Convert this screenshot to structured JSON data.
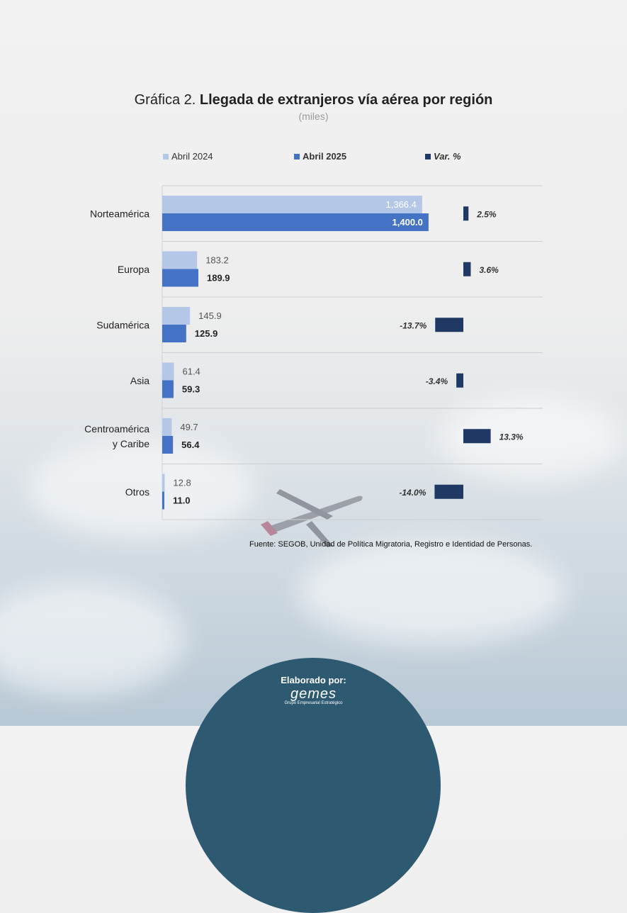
{
  "title_prefix": "Gráfica 2.",
  "title_main": "Llegada de extranjeros vía aérea por región",
  "subtitle": "(miles)",
  "legend": [
    {
      "label": "Abril 2024",
      "color": "#b4c7e7",
      "bold": false,
      "italic": false
    },
    {
      "label": "Abril 2025",
      "color": "#4472c4",
      "bold": true,
      "italic": false
    },
    {
      "label": "Var. %",
      "color": "#203864",
      "bold": true,
      "italic": true
    }
  ],
  "source": "Fuente: SEGOB, Unidad de Política Migratoria, Registro e Identidad de Personas.",
  "footer": {
    "label": "Elaborado por:",
    "logo_text": "gemes",
    "logo_sub": "Grupo Empresarial Estratégico"
  },
  "chart_data": {
    "type": "bar",
    "orientation": "horizontal",
    "categories": [
      [
        "Norteamérica"
      ],
      [
        "Europa"
      ],
      [
        "Sudamérica"
      ],
      [
        "Asia"
      ],
      [
        "Centroamérica",
        "y Caribe"
      ],
      [
        "Otros"
      ]
    ],
    "series": [
      {
        "name": "Abril 2024",
        "values": [
          1366.4,
          183.2,
          145.9,
          61.4,
          49.7,
          12.8
        ],
        "labels": [
          "1,366.4",
          "183.2",
          "145.9",
          "61.4",
          "49.7",
          "12.8"
        ],
        "color": "#b4c7e7"
      },
      {
        "name": "Abril 2025",
        "values": [
          1400.0,
          189.9,
          125.9,
          59.3,
          56.4,
          11.0
        ],
        "labels": [
          "1,400.0",
          "189.9",
          "125.9",
          "59.3",
          "56.4",
          "11.0"
        ],
        "color": "#4472c4"
      }
    ],
    "variation": {
      "name": "Var. %",
      "values": [
        2.5,
        3.6,
        -13.7,
        -3.4,
        13.3,
        -14.0
      ],
      "labels": [
        "2.5%",
        "3.6%",
        "-13.7%",
        "-3.4%",
        "13.3%",
        "-14.0%"
      ],
      "color": "#203864"
    },
    "xlim": [
      0,
      2000
    ],
    "grid": "horizontal separators",
    "legend_position": "top"
  }
}
